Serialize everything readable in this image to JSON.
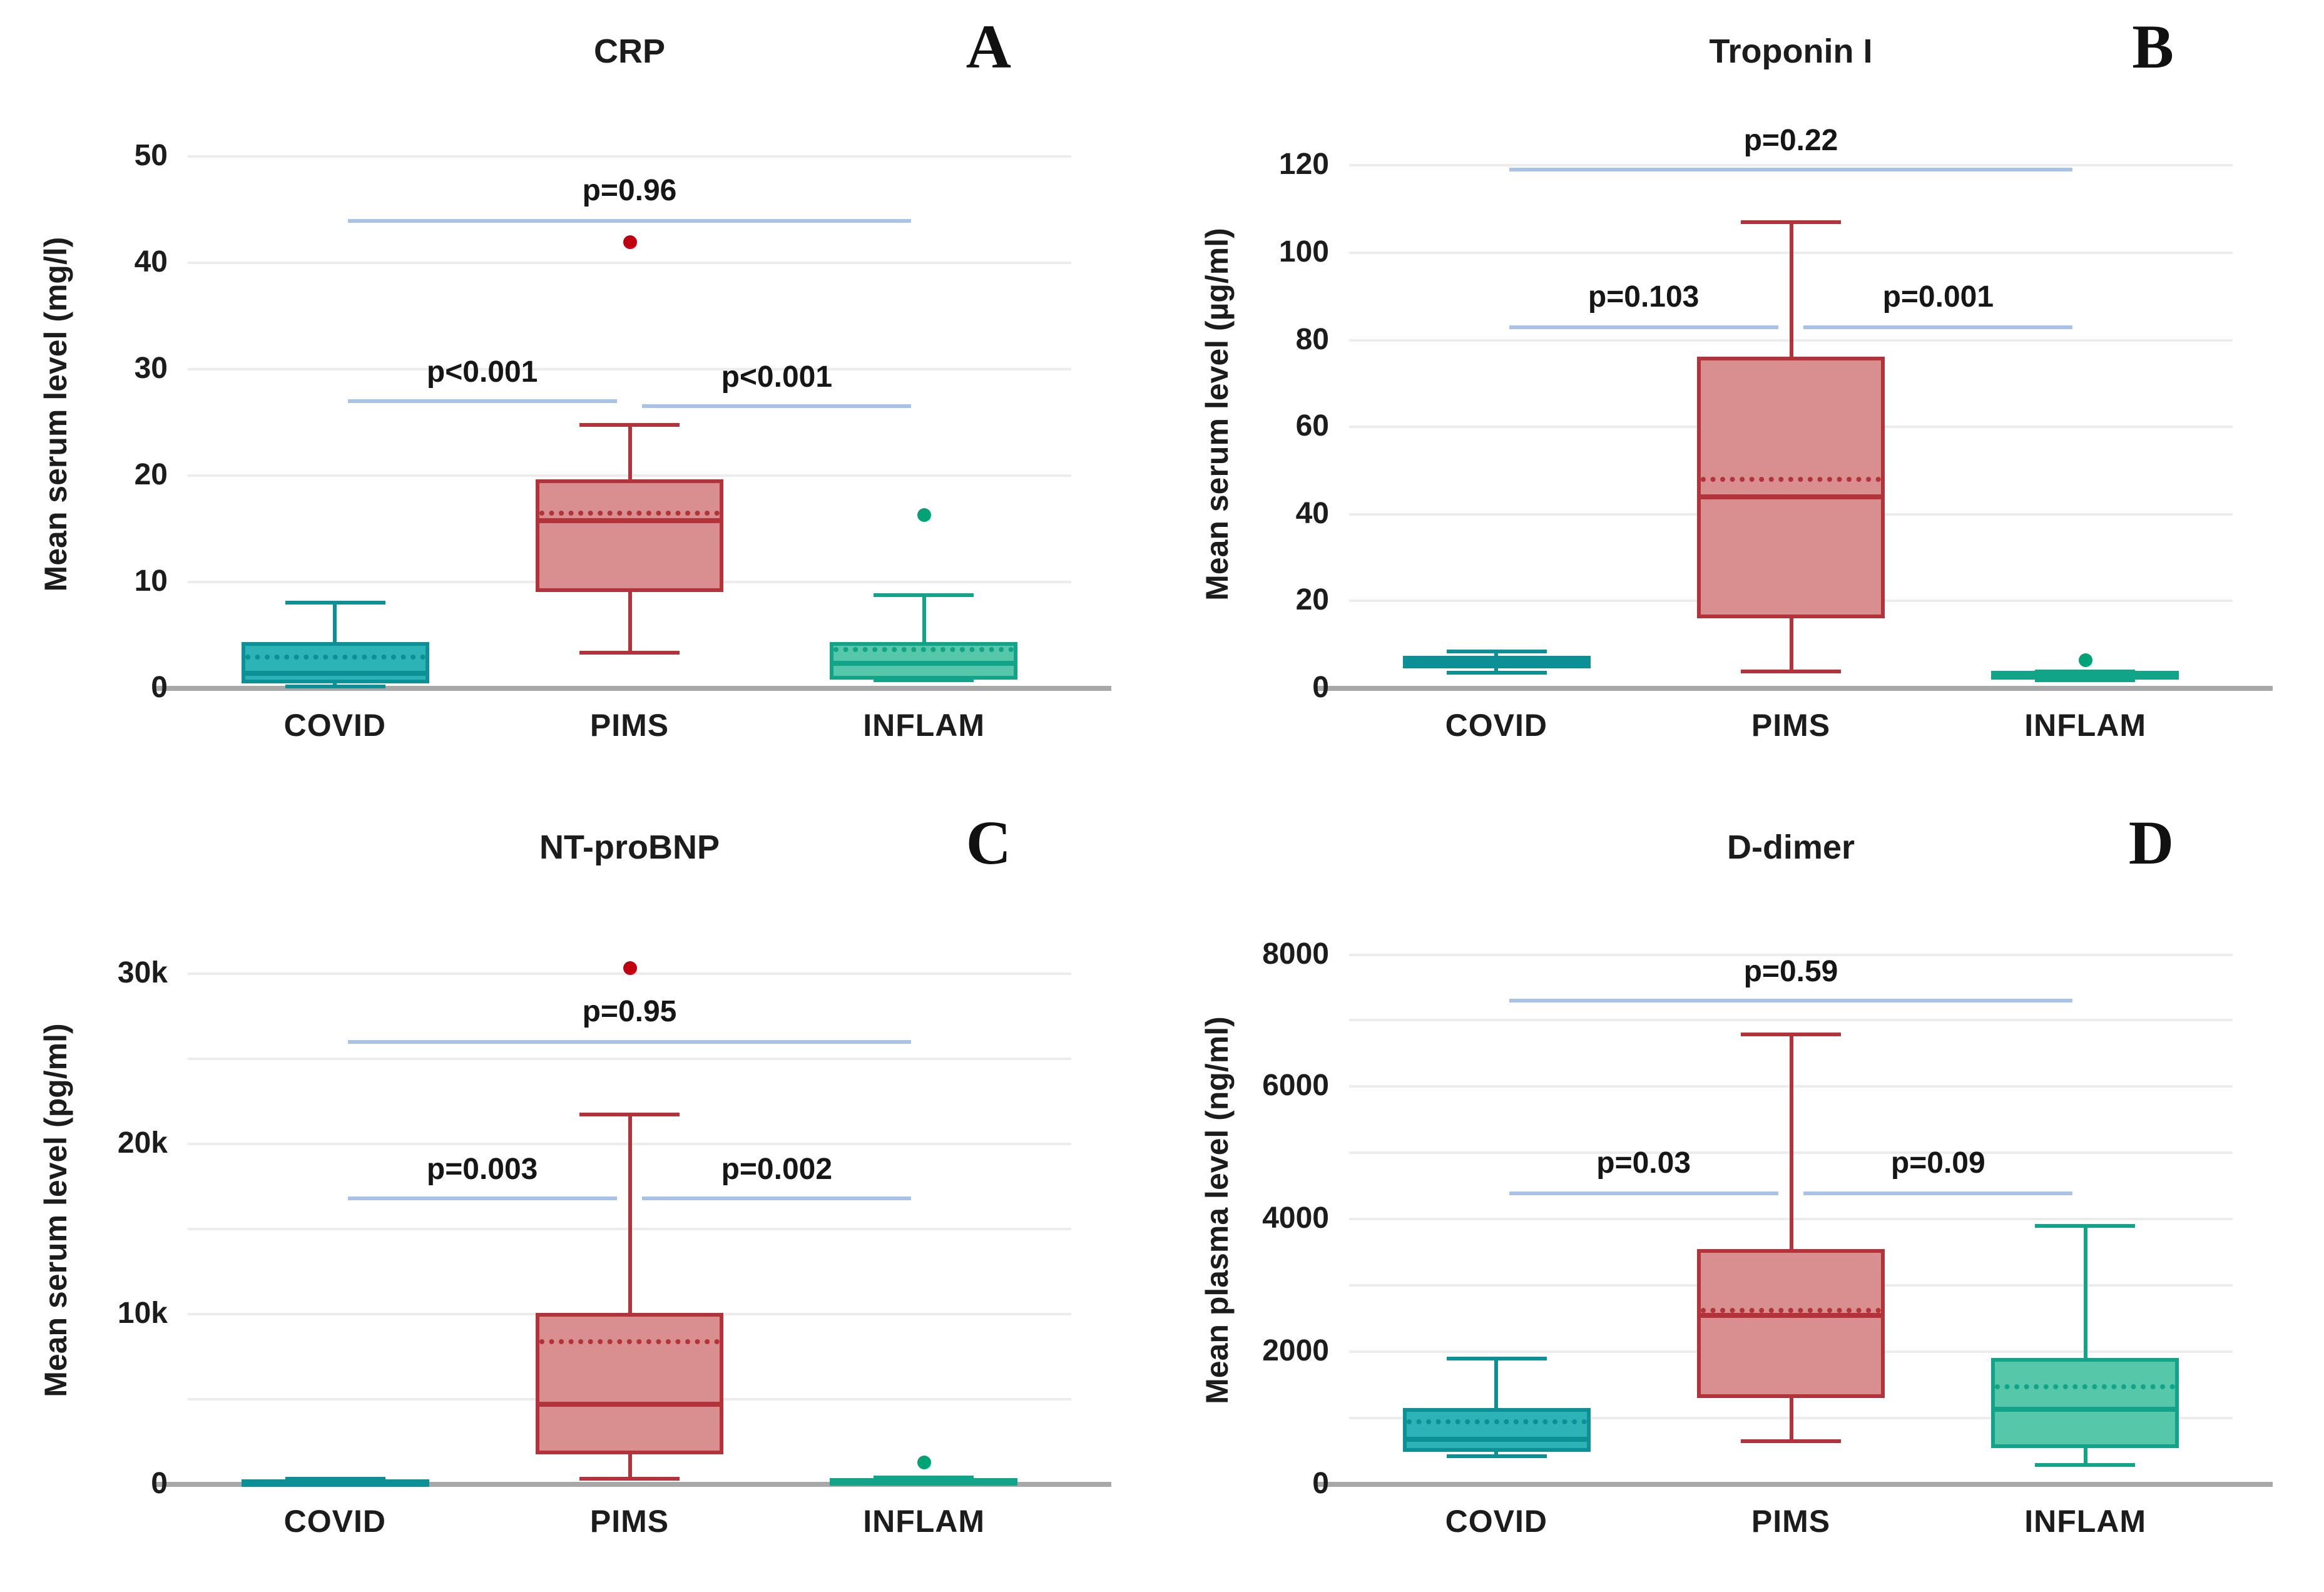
{
  "figure": {
    "background": "#ffffff"
  },
  "colors": {
    "covid": {
      "stroke": "#0c9096",
      "fill": "#2bb3b6"
    },
    "pims": {
      "stroke": "#b3333a",
      "fill": "#d98e90"
    },
    "inflam": {
      "stroke": "#12a489",
      "fill": "#57c7aa"
    },
    "outlier_red": "#c00010",
    "outlier_green": "#00a376",
    "p_line": "#a8c2e8",
    "gridline": "#ececec",
    "axis": "#a8a8a8",
    "text": "#1c1c1c"
  },
  "chart_data": [
    {
      "type": "box",
      "panel_label": "A",
      "title": "CRP",
      "ylabel": "Mean serum level (mg/l)",
      "ylim": [
        0,
        52
      ],
      "yticks": [
        {
          "v": 0,
          "label": "0"
        },
        {
          "v": 10,
          "label": "10"
        },
        {
          "v": 20,
          "label": "20"
        },
        {
          "v": 30,
          "label": "30"
        },
        {
          "v": 40,
          "label": "40"
        },
        {
          "v": 50,
          "label": "50"
        }
      ],
      "gridlines": [
        10,
        20,
        30,
        40,
        50
      ],
      "categories": [
        "COVID",
        "PIMS",
        "INFLAM"
      ],
      "series": [
        {
          "name": "COVID",
          "color_key": "covid",
          "striped": true,
          "whisker_low": 0.2,
          "q1": 0.5,
          "median": 1.4,
          "mean": 2.9,
          "q3": 4.3,
          "whisker_high": 8.1,
          "outliers": []
        },
        {
          "name": "PIMS",
          "color_key": "pims",
          "striped": false,
          "whisker_low": 3.3,
          "q1": 9.0,
          "median": 15.8,
          "mean": 16.5,
          "q3": 19.7,
          "whisker_high": 24.8,
          "outliers": [
            42
          ],
          "outlier_color": "#c00010"
        },
        {
          "name": "INFLAM",
          "color_key": "inflam",
          "striped": true,
          "whisker_low": 0.8,
          "q1": 0.8,
          "median": 2.3,
          "mean": 3.6,
          "q3": 4.4,
          "whisker_high": 8.8,
          "outliers": [
            16.3
          ],
          "outlier_color": "#00a376"
        }
      ],
      "pvalues": [
        {
          "label": "p=0.96",
          "from": 0,
          "to": 2,
          "y": 44
        },
        {
          "label": "p<0.001",
          "from": 0,
          "to": 1,
          "y": 27
        },
        {
          "label": "p<0.001",
          "from": 1,
          "to": 2,
          "y": 26.5
        }
      ]
    },
    {
      "type": "box",
      "panel_label": "B",
      "title": "Troponin I",
      "ylabel": "Mean serum level (µg/ml)",
      "ylim": [
        0,
        127
      ],
      "yticks": [
        {
          "v": 0,
          "label": "0"
        },
        {
          "v": 20,
          "label": "20"
        },
        {
          "v": 40,
          "label": "40"
        },
        {
          "v": 60,
          "label": "60"
        },
        {
          "v": 80,
          "label": "80"
        },
        {
          "v": 100,
          "label": "100"
        },
        {
          "v": 120,
          "label": "120"
        }
      ],
      "gridlines": [
        20,
        40,
        60,
        80,
        100,
        120
      ],
      "categories": [
        "COVID",
        "PIMS",
        "INFLAM"
      ],
      "series": [
        {
          "name": "COVID",
          "color_key": "covid",
          "striped": true,
          "whisker_low": 3.5,
          "q1": 4.5,
          "median": 6,
          "mean": 6,
          "q3": 7.5,
          "whisker_high": 8.5,
          "outliers": []
        },
        {
          "name": "PIMS",
          "color_key": "pims",
          "striped": false,
          "whisker_low": 4,
          "q1": 16,
          "median": 44,
          "mean": 48,
          "q3": 76,
          "whisker_high": 107,
          "outliers": []
        },
        {
          "name": "INFLAM",
          "color_key": "inflam",
          "striped": true,
          "whisker_low": 2,
          "q1": 2,
          "median": 3,
          "mean": 3.2,
          "q3": 4,
          "whisker_high": 4,
          "outliers": [
            6.5
          ],
          "outlier_color": "#00a376"
        }
      ],
      "pvalues": [
        {
          "label": "p=0.22",
          "from": 0,
          "to": 2,
          "y": 119
        },
        {
          "label": "p=0.103",
          "from": 0,
          "to": 1,
          "y": 83
        },
        {
          "label": "p=0.001",
          "from": 1,
          "to": 2,
          "y": 83
        }
      ]
    },
    {
      "type": "box",
      "panel_label": "C",
      "title": "NT-proBNP",
      "ylabel": "Mean serum level (pg/ml)",
      "ylim": [
        0,
        32500
      ],
      "yticks": [
        {
          "v": 0,
          "label": "0"
        },
        {
          "v": 10000,
          "label": "10k"
        },
        {
          "v": 20000,
          "label": "20k"
        },
        {
          "v": 30000,
          "label": "30k"
        }
      ],
      "gridlines": [
        5000,
        10000,
        15000,
        20000,
        25000,
        30000
      ],
      "categories": [
        "COVID",
        "PIMS",
        "INFLAM"
      ],
      "series": [
        {
          "name": "COVID",
          "color_key": "covid",
          "striped": true,
          "whisker_low": 60,
          "q1": 60,
          "median": 160,
          "mean": 180,
          "q3": 300,
          "whisker_high": 300,
          "outliers": []
        },
        {
          "name": "PIMS",
          "color_key": "pims",
          "striped": false,
          "whisker_low": 300,
          "q1": 1800,
          "median": 4700,
          "mean": 8400,
          "q3": 10100,
          "whisker_high": 21700,
          "outliers": [
            30300
          ],
          "outlier_color": "#c00010"
        },
        {
          "name": "INFLAM",
          "color_key": "inflam",
          "striped": true,
          "whisker_low": 40,
          "q1": 40,
          "median": 130,
          "mean": 220,
          "q3": 380,
          "whisker_high": 380,
          "outliers": [
            1300
          ],
          "outlier_color": "#00a376"
        }
      ],
      "pvalues": [
        {
          "label": "p=0.95",
          "from": 0,
          "to": 2,
          "y": 26000
        },
        {
          "label": "p=0.003",
          "from": 0,
          "to": 1,
          "y": 16800
        },
        {
          "label": "p=0.002",
          "from": 1,
          "to": 2,
          "y": 16800
        }
      ]
    },
    {
      "type": "box",
      "panel_label": "D",
      "title": "D-dimer",
      "ylabel": "Mean plasma level (ng/ml)",
      "ylim": [
        0,
        8350
      ],
      "yticks": [
        {
          "v": 0,
          "label": "0"
        },
        {
          "v": 2000,
          "label": "2000"
        },
        {
          "v": 4000,
          "label": "4000"
        },
        {
          "v": 6000,
          "label": "6000"
        },
        {
          "v": 8000,
          "label": "8000"
        }
      ],
      "gridlines": [
        1000,
        2000,
        3000,
        4000,
        5000,
        6000,
        7000,
        8000
      ],
      "categories": [
        "COVID",
        "PIMS",
        "INFLAM"
      ],
      "series": [
        {
          "name": "COVID",
          "color_key": "covid",
          "striped": true,
          "whisker_low": 430,
          "q1": 490,
          "median": 680,
          "mean": 950,
          "q3": 1150,
          "whisker_high": 1900,
          "outliers": []
        },
        {
          "name": "PIMS",
          "color_key": "pims",
          "striped": false,
          "whisker_low": 650,
          "q1": 1300,
          "median": 2550,
          "mean": 2620,
          "q3": 3550,
          "whisker_high": 6800,
          "outliers": []
        },
        {
          "name": "INFLAM",
          "color_key": "inflam",
          "striped": true,
          "whisker_low": 300,
          "q1": 550,
          "median": 1130,
          "mean": 1480,
          "q3": 1900,
          "whisker_high": 3900,
          "outliers": []
        }
      ],
      "pvalues": [
        {
          "label": "p=0.59",
          "from": 0,
          "to": 2,
          "y": 7300
        },
        {
          "label": "p=0.03",
          "from": 0,
          "to": 1,
          "y": 4400
        },
        {
          "label": "p=0.09",
          "from": 1,
          "to": 2,
          "y": 4400
        }
      ]
    }
  ]
}
